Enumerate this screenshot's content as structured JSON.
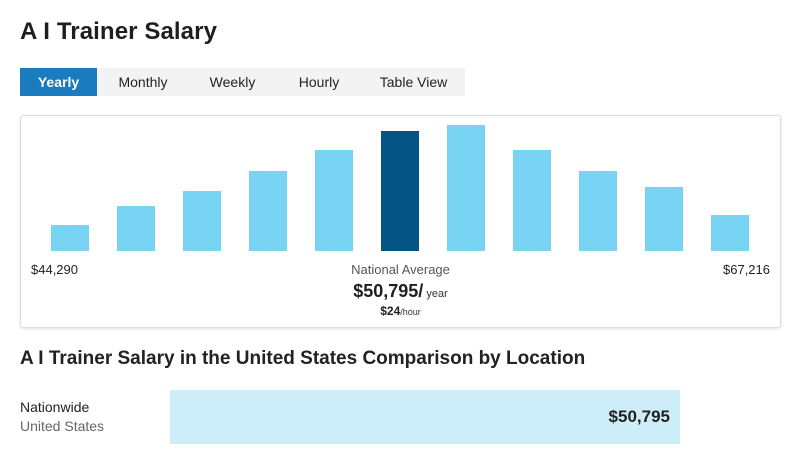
{
  "page": {
    "title": "A I Trainer Salary"
  },
  "tabs": [
    {
      "label": "Yearly",
      "active": true
    },
    {
      "label": "Monthly",
      "active": false
    },
    {
      "label": "Weekly",
      "active": false
    },
    {
      "label": "Hourly",
      "active": false
    },
    {
      "label": "Table View",
      "active": false
    }
  ],
  "colors": {
    "accent": "#1a7bbf",
    "bar": "#79d3f3",
    "bar_highlight": "#055485",
    "location_bar": "#cdeef8"
  },
  "chart_data": {
    "type": "bar",
    "values": [
      26,
      45,
      60,
      80,
      101,
      120,
      126,
      101,
      80,
      64,
      36
    ],
    "highlight_index": 5,
    "range_min_label": "$44,290",
    "range_max_label": "$67,216",
    "average_label": "National Average",
    "average_value": "$50,795/",
    "average_unit": " year",
    "hourly_value": "$24",
    "hourly_unit": "/hour"
  },
  "comparison": {
    "heading": "A I Trainer Salary in the United States Comparison by Location",
    "rows": [
      {
        "name": "Nationwide",
        "region": "United States",
        "value": "$50,795"
      }
    ]
  }
}
